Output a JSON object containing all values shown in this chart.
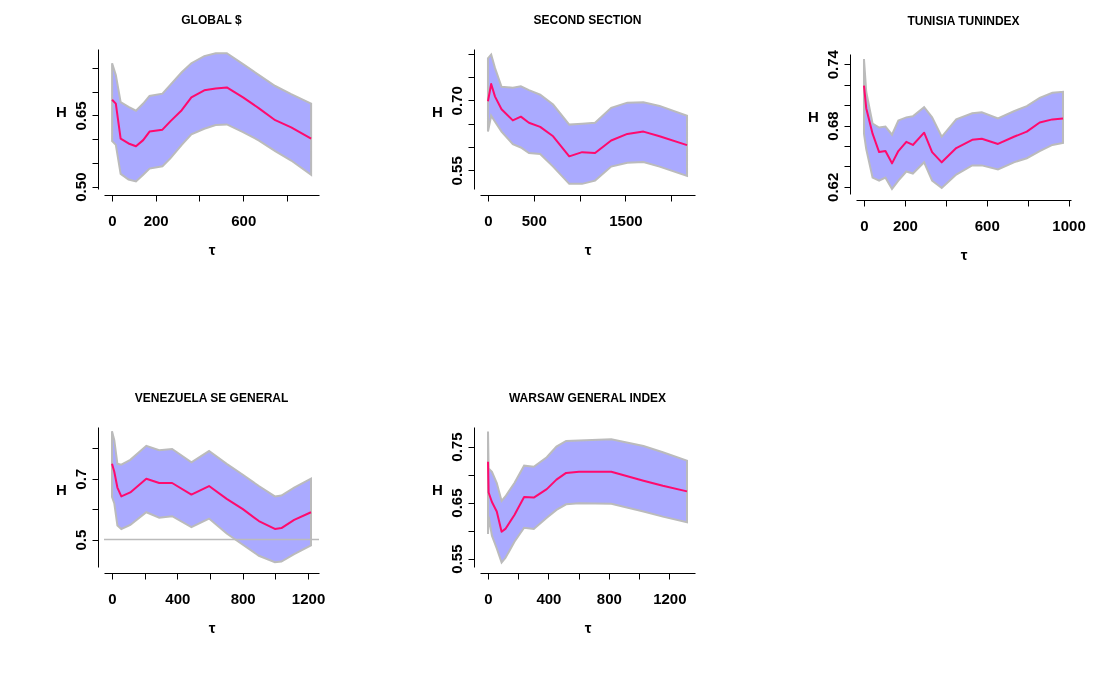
{
  "chart_data": [
    {
      "type": "line",
      "title": "GLOBAL $",
      "xlabel": "τ",
      "ylabel": "H",
      "xlim": [
        -36,
        946
      ],
      "ylim": [
        0.495,
        0.79
      ],
      "xticks": [
        0,
        200,
        {
          "value": 400,
          "label": null
        },
        600,
        {
          "value": 800,
          "label": null
        }
      ],
      "yticks": [
        {
          "value": 0.5,
          "label": "0.50"
        },
        {
          "value": 0.55,
          "label": null
        },
        {
          "value": 0.6,
          "label": null
        },
        {
          "value": 0.65,
          "label": "0.65"
        },
        {
          "value": 0.7,
          "label": null
        },
        {
          "value": 0.75,
          "label": null
        }
      ],
      "grid": false,
      "legend": false,
      "x": [
        1,
        18,
        40,
        76,
        110,
        143,
        172,
        231,
        268,
        319,
        363,
        422,
        474,
        525,
        599,
        672,
        746,
        819,
        910
      ],
      "series": [
        {
          "color": "#ff0a6e",
          "values": [
            0.683,
            0.675,
            0.601,
            0.591,
            0.585,
            0.598,
            0.616,
            0.62,
            0.638,
            0.661,
            0.688,
            0.703,
            0.707,
            0.709,
            0.688,
            0.665,
            0.64,
            0.625,
            0.601
          ],
          "lower": [
            0.596,
            0.588,
            0.527,
            0.515,
            0.511,
            0.525,
            0.538,
            0.543,
            0.56,
            0.588,
            0.61,
            0.622,
            0.63,
            0.631,
            0.615,
            0.597,
            0.575,
            0.555,
            0.525
          ],
          "upper": [
            0.76,
            0.735,
            0.678,
            0.668,
            0.66,
            0.675,
            0.691,
            0.696,
            0.715,
            0.741,
            0.76,
            0.775,
            0.781,
            0.781,
            0.758,
            0.735,
            0.712,
            0.695,
            0.675
          ]
        }
      ]
    },
    {
      "type": "line",
      "title": "SECOND SECTION",
      "xlabel": "τ",
      "ylabel": "H",
      "xlim": [
        -87,
        2260
      ],
      "ylim": [
        0.51,
        0.81
      ],
      "xticks": [
        0,
        500,
        {
          "value": 1000,
          "label": null
        },
        1500,
        {
          "value": 2000,
          "label": null
        }
      ],
      "yticks": [
        {
          "value": 0.55,
          "label": "0.55"
        },
        {
          "value": 0.6,
          "label": null
        },
        {
          "value": 0.65,
          "label": null
        },
        {
          "value": 0.7,
          "label": "0.70"
        },
        {
          "value": 0.75,
          "label": null
        },
        {
          "value": 0.8,
          "label": null
        }
      ],
      "grid": false,
      "legend": false,
      "x": [
        0,
        35,
        77,
        148,
        271,
        359,
        447,
        570,
        711,
        887,
        1028,
        1169,
        1345,
        1521,
        1697,
        1873,
        2173
      ],
      "series": [
        {
          "color": "#ff0a6e",
          "values": [
            0.698,
            0.735,
            0.708,
            0.681,
            0.657,
            0.665,
            0.652,
            0.643,
            0.623,
            0.58,
            0.589,
            0.587,
            0.614,
            0.628,
            0.633,
            0.623,
            0.604
          ],
          "lower": [
            0.633,
            0.667,
            0.654,
            0.633,
            0.606,
            0.599,
            0.587,
            0.585,
            0.558,
            0.521,
            0.521,
            0.528,
            0.558,
            0.566,
            0.568,
            0.558,
            0.538
          ],
          "upper": [
            0.79,
            0.798,
            0.769,
            0.729,
            0.727,
            0.73,
            0.722,
            0.712,
            0.691,
            0.648,
            0.65,
            0.652,
            0.684,
            0.695,
            0.696,
            0.688,
            0.667
          ]
        }
      ]
    },
    {
      "type": "line",
      "title": "TUNISIA TUNINDEX",
      "xlabel": "τ",
      "ylabel": "H",
      "xlim": [
        -39,
        1012
      ],
      "ylim": [
        0.613,
        0.75
      ],
      "xticks": [
        0,
        200,
        {
          "value": 400,
          "label": null
        },
        600,
        {
          "value": 800,
          "label": null
        },
        1000
      ],
      "yticks": [
        0.62,
        {
          "value": 0.64,
          "label": null
        },
        {
          "value": 0.66,
          "label": null
        },
        0.68,
        {
          "value": 0.7,
          "label": null
        },
        {
          "value": 0.72,
          "label": null
        },
        0.74
      ],
      "grid": false,
      "legend": false,
      "x": [
        0,
        11,
        42,
        74,
        105,
        137,
        168,
        207,
        239,
        294,
        333,
        380,
        451,
        529,
        576,
        655,
        733,
        796,
        859,
        921,
        973
      ],
      "series": [
        {
          "color": "#ff0a6e",
          "values": [
            0.719,
            0.697,
            0.672,
            0.654,
            0.655,
            0.643,
            0.655,
            0.664,
            0.661,
            0.673,
            0.654,
            0.644,
            0.658,
            0.666,
            0.667,
            0.662,
            0.669,
            0.674,
            0.683,
            0.686,
            0.687
          ],
          "lower": [
            0.672,
            0.657,
            0.629,
            0.626,
            0.629,
            0.618,
            0.626,
            0.635,
            0.633,
            0.644,
            0.626,
            0.619,
            0.632,
            0.641,
            0.641,
            0.637,
            0.644,
            0.648,
            0.655,
            0.661,
            0.663
          ],
          "upper": [
            0.745,
            0.713,
            0.682,
            0.678,
            0.679,
            0.671,
            0.685,
            0.688,
            0.689,
            0.698,
            0.688,
            0.669,
            0.686,
            0.692,
            0.693,
            0.687,
            0.694,
            0.699,
            0.707,
            0.712,
            0.713
          ]
        }
      ]
    },
    {
      "type": "line",
      "title": "VENEZUELA SE GENERAL",
      "xlabel": "τ",
      "ylabel": "H",
      "xlim": [
        -49,
        1267
      ],
      "ylim": [
        0.41,
        0.87
      ],
      "xticks": [
        0,
        {
          "value": 200,
          "label": null
        },
        400,
        {
          "value": 600,
          "label": null
        },
        800,
        {
          "value": 1000,
          "label": null
        },
        1200
      ],
      "yticks": [
        {
          "value": 0.5,
          "label": "0.5"
        },
        {
          "value": 0.6,
          "label": null
        },
        {
          "value": 0.7,
          "label": "0.7"
        },
        {
          "value": 0.8,
          "label": null
        }
      ],
      "grid": false,
      "legend": false,
      "ref_lines": [
        {
          "axis": "y",
          "value": 0.5,
          "label": null,
          "color": "#bbbbbb"
        }
      ],
      "x": [
        0,
        14,
        33,
        57,
        112,
        210,
        289,
        368,
        486,
        594,
        702,
        801,
        899,
        997,
        1037,
        1115,
        1218
      ],
      "series": [
        {
          "color": "#ff0a6e",
          "values": [
            0.749,
            0.723,
            0.671,
            0.642,
            0.655,
            0.7,
            0.686,
            0.686,
            0.648,
            0.676,
            0.634,
            0.6,
            0.561,
            0.535,
            0.538,
            0.565,
            0.59
          ],
          "lower": [
            0.64,
            0.619,
            0.546,
            0.535,
            0.548,
            0.59,
            0.572,
            0.577,
            0.541,
            0.569,
            0.52,
            0.483,
            0.447,
            0.426,
            0.428,
            0.452,
            0.481
          ],
          "upper": [
            0.856,
            0.827,
            0.749,
            0.746,
            0.762,
            0.808,
            0.794,
            0.798,
            0.754,
            0.791,
            0.749,
            0.713,
            0.676,
            0.642,
            0.645,
            0.671,
            0.7
          ]
        }
      ]
    },
    {
      "type": "line",
      "title": "WARSAW GENERAL INDEX",
      "xlabel": "τ",
      "ylabel": "H",
      "xlim": [
        -53,
        1370
      ],
      "ylim": [
        0.535,
        0.785
      ],
      "xticks": [
        0,
        {
          "value": 200,
          "label": null
        },
        400,
        {
          "value": 600,
          "label": null
        },
        800,
        {
          "value": 1000,
          "label": null
        },
        1200
      ],
      "yticks": [
        {
          "value": 0.55,
          "label": "0.55"
        },
        {
          "value": 0.6,
          "label": null
        },
        {
          "value": 0.65,
          "label": "0.65"
        },
        {
          "value": 0.7,
          "label": null
        },
        {
          "value": 0.75,
          "label": "0.75"
        }
      ],
      "grid": false,
      "legend": false,
      "x": [
        0,
        4,
        26,
        58,
        90,
        115,
        175,
        239,
        303,
        389,
        453,
        517,
        602,
        816,
        1029,
        1157,
        1317
      ],
      "series": [
        {
          "color": "#ff0a6e",
          "values": [
            0.723,
            0.668,
            0.651,
            0.634,
            0.598,
            0.603,
            0.628,
            0.66,
            0.659,
            0.674,
            0.691,
            0.703,
            0.705,
            0.705,
            0.689,
            0.68,
            0.67
          ],
          "lower": [
            0.594,
            0.625,
            0.591,
            0.568,
            0.543,
            0.551,
            0.58,
            0.605,
            0.603,
            0.623,
            0.637,
            0.647,
            0.649,
            0.648,
            0.634,
            0.625,
            0.615
          ],
          "upper": [
            0.777,
            0.711,
            0.705,
            0.685,
            0.653,
            0.661,
            0.685,
            0.716,
            0.714,
            0.731,
            0.75,
            0.76,
            0.761,
            0.763,
            0.751,
            0.74,
            0.725
          ]
        }
      ]
    }
  ]
}
